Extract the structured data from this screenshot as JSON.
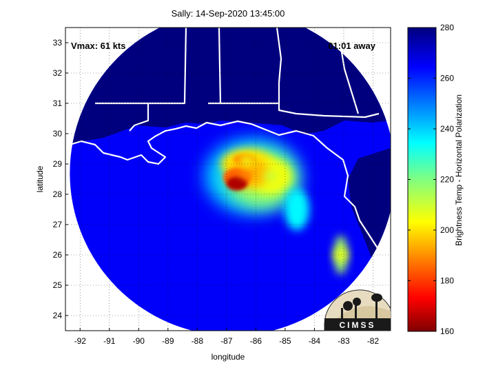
{
  "chart_data": {
    "type": "heatmap",
    "title": "Sally: 14-Sep-2020 13:45:00",
    "xlabel": "longitude",
    "ylabel": "latitude",
    "xlim": [
      -92.5,
      -81.4
    ],
    "ylim": [
      23.5,
      33.5
    ],
    "x_ticks": [
      -92,
      -91,
      -90,
      -89,
      -88,
      -87,
      -86,
      -85,
      -84,
      -83,
      -82
    ],
    "y_ticks": [
      24,
      25,
      26,
      27,
      28,
      29,
      30,
      31,
      32,
      33
    ],
    "grid": true,
    "colorbar": {
      "label": "Brightness Temp - Horizontal Polarization",
      "range": [
        160,
        280
      ],
      "ticks": [
        160,
        180,
        200,
        220,
        240,
        260,
        280
      ],
      "colormap": "jet"
    },
    "swath_center": {
      "lon": -86.8,
      "lat": 28.7
    },
    "storm_center": {
      "lon": -86.65,
      "lat": 28.35
    },
    "annotations": {
      "vmax": "Vmax: 61 kts",
      "time_away": "01:01 away"
    },
    "features": [
      {
        "name": "eyewall core",
        "lon": -86.65,
        "lat": 28.35,
        "value": 165
      },
      {
        "name": "inner rain band",
        "lon": -86.3,
        "lat": 28.7,
        "value": 190
      },
      {
        "name": "northern band",
        "lon": -86.3,
        "lat": 29.1,
        "value": 205
      },
      {
        "name": "eastern band",
        "lon": -85.5,
        "lat": 28.6,
        "value": 210
      },
      {
        "name": "southeast spiral band",
        "lon": -83.1,
        "lat": 26.0,
        "value": 205
      }
    ],
    "background_value": 265,
    "land_value": 280
  },
  "logo": {
    "text": "CIMSS"
  }
}
